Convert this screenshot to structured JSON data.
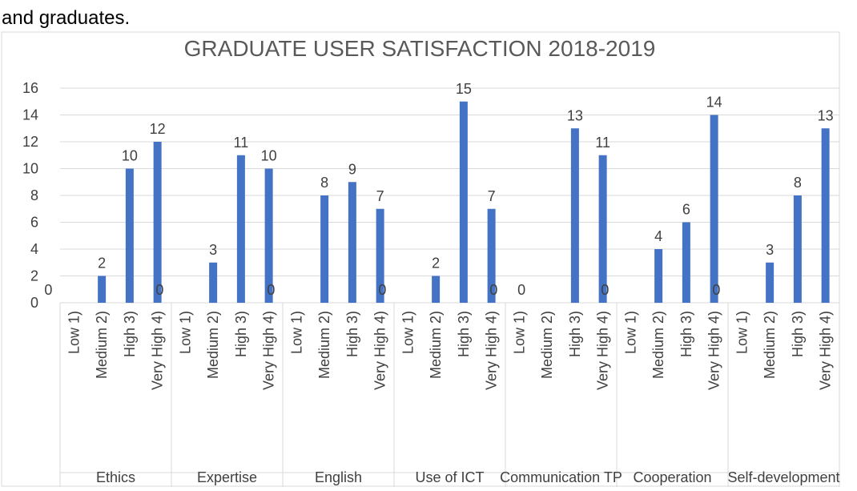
{
  "caption": "and graduates.",
  "chart_data": {
    "type": "bar",
    "title": "GRADUATE USER SATISFACTION 2018-2019",
    "color": "#4472c4",
    "grid": true,
    "levels": [
      "Low 1)",
      "Medium 2)",
      "High 3)",
      "Very High 4)"
    ],
    "groups": [
      {
        "label": "Ethics",
        "values": [
          0,
          2,
          10,
          12
        ]
      },
      {
        "label": "Expertise",
        "values": [
          0,
          3,
          11,
          10
        ]
      },
      {
        "label": "English",
        "values": [
          0,
          8,
          9,
          7
        ]
      },
      {
        "label": "Use of ICT",
        "values": [
          0,
          2,
          15,
          7
        ]
      },
      {
        "label": "Communication TP",
        "values": [
          0,
          0,
          13,
          11
        ]
      },
      {
        "label": "Cooperation",
        "values": [
          0,
          4,
          6,
          14
        ]
      },
      {
        "label": "Self-development",
        "values": [
          0,
          3,
          8,
          13
        ]
      }
    ],
    "ylim": [
      0,
      16
    ],
    "yticks": [
      0,
      2,
      4,
      6,
      8,
      10,
      12,
      14,
      16
    ]
  }
}
